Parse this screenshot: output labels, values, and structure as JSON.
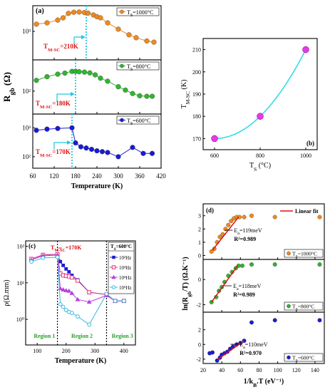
{
  "chart_data": [
    {
      "id": "a",
      "panel_label": "(a)",
      "type": "scatter-line",
      "xlabel": "Temperature (K)",
      "ylabel": "R_gb (Ω)",
      "xlim": [
        60,
        420
      ],
      "xticks": [
        "60",
        "120",
        "180",
        "240",
        "300",
        "360",
        "420"
      ],
      "xtick_values": [
        60,
        120,
        180,
        240,
        300,
        360,
        420
      ],
      "log_y": true,
      "subpanels": [
        {
          "legend": "T_S=1000°C",
          "color": "#f0891c",
          "ylim": [
            100,
            8000
          ],
          "yticks": [
            "10³"
          ],
          "ytick_values": [
            1000
          ],
          "points": [
            [
              70,
              1800
            ],
            [
              100,
              2000
            ],
            [
              130,
              2500
            ],
            [
              145,
              3000
            ],
            [
              160,
              4300
            ],
            [
              175,
              4700
            ],
            [
              190,
              4800
            ],
            [
              205,
              4600
            ],
            [
              215,
              4400
            ],
            [
              230,
              3800
            ],
            [
              240,
              3300
            ],
            [
              250,
              3000
            ],
            [
              270,
              2000
            ],
            [
              300,
              1200
            ],
            [
              330,
              760
            ],
            [
              350,
              600
            ],
            [
              380,
              460
            ],
            [
              400,
              420
            ]
          ],
          "transition": 210,
          "annotation": "T_M-SC=210K"
        },
        {
          "legend": "T_S=800°C",
          "color": "#2fb52f",
          "ylim": [
            12,
            1800
          ],
          "yticks": [
            "10²"
          ],
          "ytick_values": [
            100
          ],
          "points": [
            [
              70,
              270
            ],
            [
              100,
              380
            ],
            [
              130,
              480
            ],
            [
              150,
              530
            ],
            [
              170,
              620
            ],
            [
              180,
              620
            ],
            [
              190,
              600
            ],
            [
              205,
              580
            ],
            [
              220,
              540
            ],
            [
              235,
              450
            ],
            [
              250,
              330
            ],
            [
              270,
              250
            ],
            [
              300,
              150
            ],
            [
              320,
              110
            ],
            [
              340,
              80
            ],
            [
              360,
              65
            ],
            [
              380,
              62
            ],
            [
              395,
              62
            ]
          ],
          "transition": 180,
          "annotation": "T_M-SC=180K"
        },
        {
          "legend": "T_S=600°C",
          "color": "#1a1ad6",
          "ylim": [
            40,
            3000
          ],
          "yticks": [
            "10³",
            "10²"
          ],
          "ytick_values": [
            1000,
            100
          ],
          "points": [
            [
              70,
              820
            ],
            [
              100,
              900
            ],
            [
              130,
              950
            ],
            [
              170,
              1000
            ],
            [
              180,
              300
            ],
            [
              195,
              220
            ],
            [
              210,
              200
            ],
            [
              225,
              180
            ],
            [
              240,
              160
            ],
            [
              255,
              150
            ],
            [
              270,
              140
            ],
            [
              300,
              100
            ],
            [
              340,
              210
            ],
            [
              370,
              130
            ],
            [
              395,
              130
            ]
          ],
          "transition": 170,
          "annotation": "T_M-SC=170K"
        }
      ]
    },
    {
      "id": "b",
      "panel_label": "(b)",
      "type": "scatter-line",
      "xlabel": "T_S (°C)",
      "ylabel": "T_M-SC (K)",
      "xlim": [
        550,
        1050
      ],
      "ylim": [
        165,
        215
      ],
      "xticks": [
        "600",
        "800",
        "1000"
      ],
      "xtick_values": [
        600,
        800,
        1000
      ],
      "yticks": [
        "170",
        "180",
        "190",
        "200",
        "210"
      ],
      "ytick_values": [
        170,
        180,
        190,
        200,
        210
      ],
      "points": [
        [
          600,
          170
        ],
        [
          800,
          180
        ],
        [
          1000,
          210
        ]
      ],
      "marker_color": "#e838e8",
      "line_color": "#33dcea"
    },
    {
      "id": "c",
      "panel_label": "(c)",
      "type": "scatter-line",
      "xlabel": "Temperature (K)",
      "ylabel": "ρ(Ω.mm)",
      "legend_title": "T_S=600°C",
      "xlim": [
        60,
        440
      ],
      "log_y": true,
      "ylim": [
        0.2,
        140
      ],
      "xticks": [
        "100",
        "200",
        "300",
        "400"
      ],
      "xtick_values": [
        100,
        200,
        300,
        400
      ],
      "yticks": [
        "10²",
        "10¹",
        "10⁰"
      ],
      "ytick_values": [
        100,
        10,
        1
      ],
      "annotation": "T_M-SC=170K",
      "vlines": [
        170,
        340
      ],
      "regions": [
        "Region 1",
        "Region 2",
        "Region 3"
      ],
      "series": [
        {
          "name": "10²Hz",
          "color": "#1a1ad6",
          "marker": "filled-square",
          "points": [
            [
              80,
              45
            ],
            [
              120,
              58
            ],
            [
              170,
              60
            ],
            [
              180,
              38
            ],
            [
              190,
              30
            ],
            [
              200,
              24
            ],
            [
              210,
              20
            ],
            [
              220,
              16
            ],
            [
              240,
              12
            ],
            [
              280,
              5.5
            ],
            [
              340,
              4.8
            ],
            [
              370,
              3.2
            ],
            [
              400,
              3.2
            ]
          ]
        },
        {
          "name": "10³Hz",
          "color": "#e0347f",
          "marker": "open-square",
          "points": [
            [
              80,
              45
            ],
            [
              120,
              58
            ],
            [
              170,
              60
            ],
            [
              180,
              18
            ],
            [
              190,
              16
            ],
            [
              200,
              15.5
            ],
            [
              210,
              15
            ],
            [
              220,
              14
            ],
            [
              240,
              11.5
            ],
            [
              280,
              5.5
            ],
            [
              340,
              4.8
            ],
            [
              370,
              3.2
            ],
            [
              400,
              3.2
            ]
          ]
        },
        {
          "name": "10⁴Hz",
          "color": "#b83ee0",
          "marker": "filled-triangle",
          "points": [
            [
              80,
              42
            ],
            [
              120,
              55
            ],
            [
              170,
              57
            ],
            [
              180,
              7
            ],
            [
              190,
              6.5
            ],
            [
              200,
              6.2
            ],
            [
              210,
              6
            ],
            [
              220,
              5.2
            ],
            [
              240,
              3.5
            ],
            [
              280,
              3
            ],
            [
              340,
              4.5
            ],
            [
              370,
              3.2
            ],
            [
              400,
              3.2
            ]
          ]
        },
        {
          "name": "10⁵Hz",
          "color": "#38b8e0",
          "marker": "open-circle",
          "points": [
            [
              80,
              38
            ],
            [
              120,
              48
            ],
            [
              170,
              50
            ],
            [
              180,
              2.6
            ],
            [
              190,
              2.2
            ],
            [
              200,
              1.8
            ],
            [
              210,
              1.6
            ],
            [
              220,
              1.5
            ],
            [
              240,
              1.2
            ],
            [
              280,
              0.72
            ],
            [
              340,
              5
            ],
            [
              370,
              3.2
            ],
            [
              400,
              3.2
            ]
          ]
        }
      ]
    },
    {
      "id": "d",
      "panel_label": "(d)",
      "type": "scatter-line",
      "xlabel": "1/k_B.T (eV⁻¹)",
      "ylabel": "ln(R_gb/T) (Ω.K⁻¹)",
      "fit_legend": "Linear fit",
      "xlim": [
        20,
        150
      ],
      "xticks": [
        "20",
        "40",
        "60",
        "80",
        "100",
        "120",
        "140"
      ],
      "xtick_values": [
        20,
        40,
        60,
        80,
        100,
        120,
        140
      ],
      "subpanels": [
        {
          "legend": "T_S=1000°C",
          "color": "#f0891c",
          "ylim": [
            -0.3,
            3.9
          ],
          "yticks": [
            "0",
            "1",
            "2",
            "3"
          ],
          "ytick_values": [
            0,
            1,
            2,
            3
          ],
          "points": [
            [
              29,
              0.3
            ],
            [
              32,
              0.5
            ],
            [
              35,
              1.0
            ],
            [
              38,
              1.4
            ],
            [
              41,
              1.6
            ],
            [
              44,
              2.0
            ],
            [
              47,
              2.3
            ],
            [
              50,
              2.6
            ],
            [
              53,
              2.8
            ],
            [
              56,
              2.9
            ],
            [
              59,
              2.9
            ],
            [
              64,
              2.9
            ],
            [
              72,
              3.0
            ],
            [
              97,
              2.9
            ],
            [
              145,
              2.9
            ]
          ],
          "fit": [
            [
              30,
              0.4
            ],
            [
              58,
              2.9
            ]
          ],
          "energy": "E_a=119meV",
          "r2": "R²=0.989"
        },
        {
          "legend": "T_S=800°C",
          "color": "#2fb52f",
          "ylim": [
            -2.6,
            1.6
          ],
          "yticks": [
            "0",
            "-2"
          ],
          "ytick_values": [
            0,
            -2
          ],
          "points": [
            [
              29,
              -1.8
            ],
            [
              34,
              -1.4
            ],
            [
              37,
              -0.9
            ],
            [
              40,
              -0.6
            ],
            [
              43,
              -0.2
            ],
            [
              47,
              0.3
            ],
            [
              51,
              0.6
            ],
            [
              55,
              0.9
            ],
            [
              58,
              1.1
            ],
            [
              62,
              1.1
            ],
            [
              72,
              1.2
            ],
            [
              97,
              1.2
            ],
            [
              145,
              1.2
            ]
          ],
          "fit": [
            [
              29,
              -1.8
            ],
            [
              57,
              1.1
            ]
          ],
          "energy": "E_a=118meV",
          "r2": "R²=0.989"
        },
        {
          "legend": "T_S=600°C",
          "color": "#1a1ad6",
          "ylim": [
            -2.6,
            4.4
          ],
          "yticks": [
            "2",
            "0",
            "-2"
          ],
          "ytick_values": [
            2,
            0,
            -2
          ],
          "points": [
            [
              27,
              -1.2
            ],
            [
              30,
              -1.1
            ],
            [
              35,
              -2.2
            ],
            [
              38,
              -1.8
            ],
            [
              40,
              -1.4
            ],
            [
              43,
              -1.2
            ],
            [
              46,
              -1.0
            ],
            [
              49,
              -0.6
            ],
            [
              52,
              -0.3
            ],
            [
              56,
              0.0
            ],
            [
              60,
              0.2
            ],
            [
              64,
              0.5
            ],
            [
              72,
              3.0
            ],
            [
              97,
              3.3
            ],
            [
              145,
              3.3
            ]
          ],
          "fit": [
            [
              36,
              -2.0
            ],
            [
              64,
              0.5
            ]
          ],
          "energy": "E_a=110meV",
          "r2": "R²=0.970"
        }
      ]
    }
  ]
}
